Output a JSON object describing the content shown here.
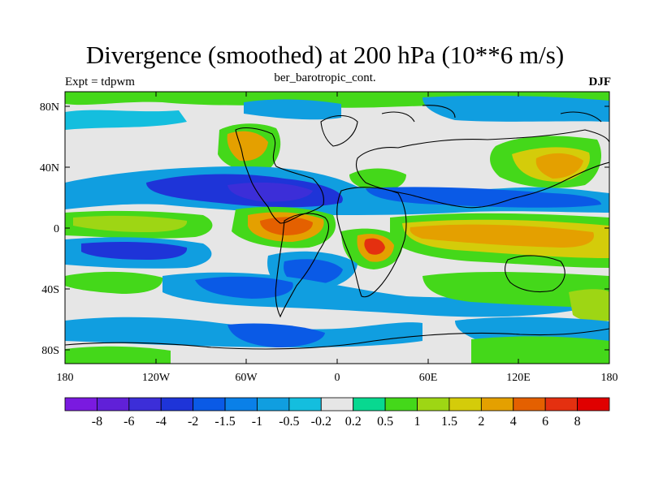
{
  "title": "Divergence (smoothed) at 200 hPa (10**6 m/s)",
  "subtitle_center": "ber_barotropic_cont.",
  "subtitle_left": "Expt = tdpwm",
  "subtitle_right": "DJF",
  "lat_ticks": [
    "80N",
    "40N",
    "0",
    "40S",
    "80S"
  ],
  "lon_ticks": [
    "180",
    "120W",
    "60W",
    "0",
    "60E",
    "120E",
    "180"
  ],
  "legend": {
    "labels": [
      "-8",
      "-6",
      "-4",
      "-2",
      "-1.5",
      "-1",
      "-0.5",
      "-0.2",
      "0.2",
      "0.5",
      "1",
      "1.5",
      "2",
      "4",
      "6",
      "8"
    ],
    "colors": [
      "#7a1ae0",
      "#6020d8",
      "#3c2ed8",
      "#1e34d8",
      "#0a5ae6",
      "#0a80e8",
      "#109ee0",
      "#14bede",
      "#e6e6e6",
      "#08d890",
      "#44d81a",
      "#9ed614",
      "#d4cc0a",
      "#e4a000",
      "#e46000",
      "#e43010",
      "#e00000"
    ]
  }
}
